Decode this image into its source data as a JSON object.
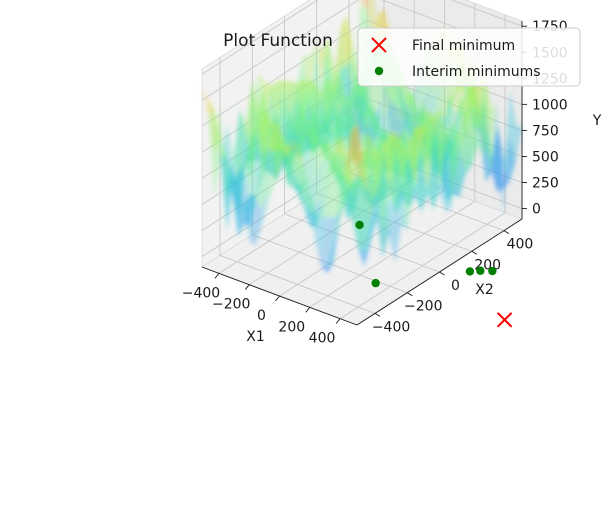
{
  "chart_data": {
    "type": "surface3d",
    "title": "Plot Function",
    "xlabel": "X1",
    "ylabel": "X2",
    "zlabel": "Y",
    "xlim": [
      -512,
      512
    ],
    "ylim": [
      -512,
      512
    ],
    "zlim": [
      -100,
      1800
    ],
    "x_ticks": [
      -400,
      -200,
      0,
      200,
      400
    ],
    "y_ticks": [
      -400,
      -200,
      0,
      200,
      400
    ],
    "z_ticks": [
      0,
      250,
      500,
      750,
      1000,
      1250,
      1500,
      1750
    ],
    "x_tick_labels": [
      "−400",
      "−200",
      "0",
      "200",
      "400"
    ],
    "y_tick_labels": [
      "−400",
      "−200",
      "0",
      "200",
      "400"
    ],
    "z_tick_labels": [
      "0",
      "250",
      "500",
      "750",
      "1000",
      "1250",
      "1500",
      "1750"
    ],
    "grid": true,
    "colormap": "rainbow",
    "surface_alpha": 0.35,
    "legend_position": "top-right",
    "series": [
      {
        "name": "Final minimum",
        "marker": "x",
        "color": "#ff0000",
        "points": [
          {
            "x": 512,
            "y": 404,
            "z": -960
          }
        ]
      },
      {
        "name": "Interim minimums",
        "marker": "o",
        "color": "#008000",
        "points": [
          {
            "x": -80,
            "y": 60,
            "z": -30
          },
          {
            "x": 250,
            "y": -150,
            "z": -200
          },
          {
            "x": 500,
            "y": 200,
            "z": -300
          },
          {
            "x": 505,
            "y": 260,
            "z": -350
          },
          {
            "x": 510,
            "y": 330,
            "z": -420
          }
        ]
      }
    ]
  }
}
